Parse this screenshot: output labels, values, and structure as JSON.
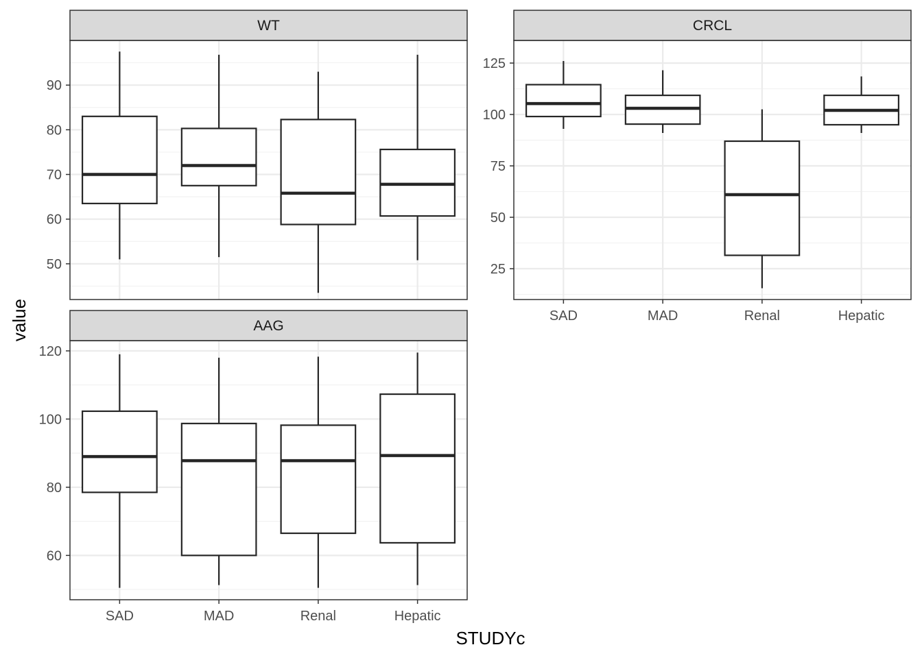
{
  "chart_data": {
    "type": "boxplot",
    "xlabel": "STUDYc",
    "ylabel": "value",
    "categories": [
      "SAD",
      "MAD",
      "Renal",
      "Hepatic"
    ],
    "grid": true,
    "colors": {
      "strip_fill": "#d9d9d9",
      "panel_border": "#333333",
      "grid_major": "#ebebeb",
      "box_line": "#262626"
    },
    "panels": [
      {
        "name": "WT",
        "ylim": [
          42,
          100
        ],
        "yticks": [
          50,
          60,
          70,
          80,
          90
        ],
        "series": [
          {
            "category": "SAD",
            "min": 51,
            "q1": 63.5,
            "median": 70,
            "q3": 83,
            "max": 97.5
          },
          {
            "category": "MAD",
            "min": 51.5,
            "q1": 67.5,
            "median": 72,
            "q3": 80.3,
            "max": 96.8
          },
          {
            "category": "Renal",
            "min": 43.5,
            "q1": 58.8,
            "median": 65.8,
            "q3": 82.3,
            "max": 93
          },
          {
            "category": "Hepatic",
            "min": 50.8,
            "q1": 60.7,
            "median": 67.8,
            "q3": 75.6,
            "max": 96.8
          }
        ]
      },
      {
        "name": "CRCL",
        "ylim": [
          10,
          136
        ],
        "yticks": [
          25,
          50,
          75,
          100,
          125
        ],
        "series": [
          {
            "category": "SAD",
            "min": 93,
            "q1": 99,
            "median": 105.3,
            "q3": 114.5,
            "max": 126
          },
          {
            "category": "MAD",
            "min": 91,
            "q1": 95.3,
            "median": 103,
            "q3": 109.3,
            "max": 121.5
          },
          {
            "category": "Renal",
            "min": 15.5,
            "q1": 31.5,
            "median": 61,
            "q3": 87,
            "max": 102.5
          },
          {
            "category": "Hepatic",
            "min": 91,
            "q1": 95,
            "median": 102,
            "q3": 109.3,
            "max": 118.5
          }
        ]
      },
      {
        "name": "AAG",
        "ylim": [
          47,
          123
        ],
        "yticks": [
          60,
          80,
          100,
          120
        ],
        "series": [
          {
            "category": "SAD",
            "min": 50.5,
            "q1": 78.5,
            "median": 89,
            "q3": 102.3,
            "max": 119
          },
          {
            "category": "MAD",
            "min": 51.3,
            "q1": 60,
            "median": 87.8,
            "q3": 98.7,
            "max": 118
          },
          {
            "category": "Renal",
            "min": 50.5,
            "q1": 66.5,
            "median": 87.8,
            "q3": 98.2,
            "max": 118.3
          },
          {
            "category": "Hepatic",
            "min": 51.3,
            "q1": 63.7,
            "median": 89.3,
            "q3": 107.3,
            "max": 119.5
          }
        ]
      }
    ]
  }
}
